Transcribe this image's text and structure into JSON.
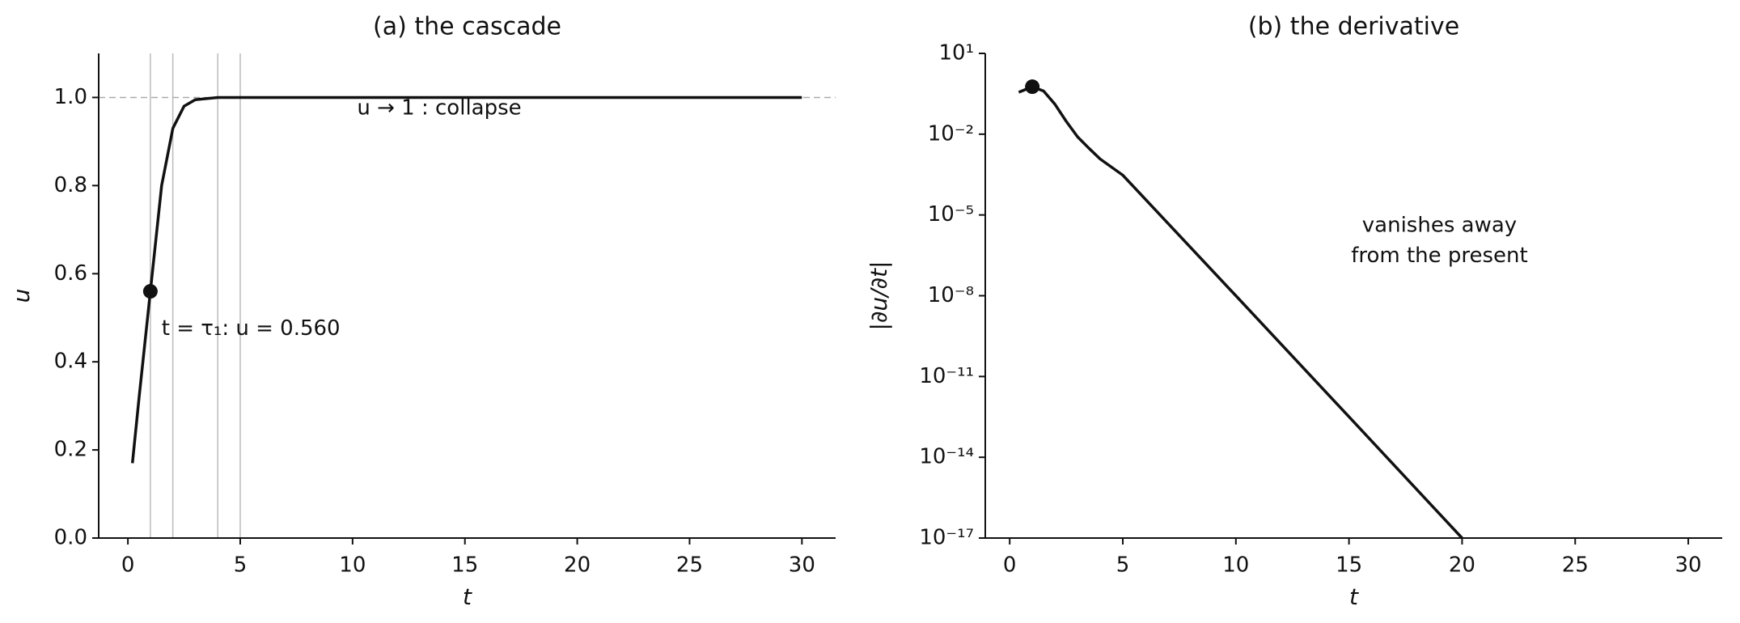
{
  "chart_data": [
    {
      "type": "line",
      "title": "(a) the cascade",
      "x_label": "t",
      "y_label": "u",
      "x": [
        0.2,
        0.5,
        1,
        1.5,
        2,
        2.5,
        3,
        4,
        5,
        10,
        20,
        30
      ],
      "series": [
        {
          "color": "#111111",
          "values": [
            0.17,
            0.32,
            0.56,
            0.8,
            0.93,
            0.98,
            0.995,
            1,
            1,
            1,
            1,
            1
          ]
        }
      ],
      "marker": {
        "x": 1,
        "y": 0.56
      },
      "vlines": [
        1,
        2,
        4,
        5
      ],
      "hline": 1,
      "annotations": [
        {
          "text": "t = τ₁: u = 0.560",
          "x": 1.5,
          "y": 0.475
        },
        {
          "text": "u → 1 : collapse",
          "x": 10.2,
          "y": 0.975
        }
      ],
      "xlim": [
        -1.3,
        31.5
      ],
      "ylim": [
        0,
        1.1
      ],
      "xticks": [
        0,
        5,
        10,
        15,
        20,
        25,
        30
      ],
      "yticks": [
        {
          "value": 0,
          "label": "0.0"
        },
        {
          "value": 0.2,
          "label": "0.2"
        },
        {
          "value": 0.4,
          "label": "0.4"
        },
        {
          "value": 0.6,
          "label": "0.6"
        },
        {
          "value": 0.8,
          "label": "0.8"
        },
        {
          "value": 1,
          "label": "1.0"
        }
      ]
    },
    {
      "type": "line",
      "title": "(b) the derivative",
      "x_label": "t",
      "y_label": "|∂u/∂t|",
      "yscale": "log",
      "x": [
        0.4,
        1,
        1.5,
        2,
        2.5,
        3,
        3.5,
        4,
        5,
        10,
        15,
        20
      ],
      "series": [
        {
          "color": "#111111",
          "values": [
            0.36,
            0.58,
            0.4,
            0.13,
            0.03,
            0.008,
            0.003,
            0.0012,
            0.0003,
            1e-08,
            3.2e-13,
            1e-17
          ]
        }
      ],
      "marker": {
        "x": 1,
        "y": 0.58
      },
      "annotations": [
        {
          "text": "vanishes away",
          "x": 19,
          "y": 4e-06
        },
        {
          "text": "from the present",
          "x": 19,
          "y": 3e-07
        }
      ],
      "xlim": [
        -1.08,
        31.5
      ],
      "ylim": [
        1e-17,
        10
      ],
      "xticks": [
        0,
        5,
        10,
        15,
        20,
        25,
        30
      ],
      "yticks": [
        {
          "value": 10,
          "label": "10¹"
        },
        {
          "value": 0.01,
          "label": "10⁻²"
        },
        {
          "value": 1e-05,
          "label": "10⁻⁵"
        },
        {
          "value": 1e-08,
          "label": "10⁻⁸"
        },
        {
          "value": 1e-11,
          "label": "10⁻¹¹"
        },
        {
          "value": 1e-14,
          "label": "10⁻¹⁴"
        },
        {
          "value": 1e-17,
          "label": "10⁻¹⁷"
        }
      ]
    }
  ]
}
